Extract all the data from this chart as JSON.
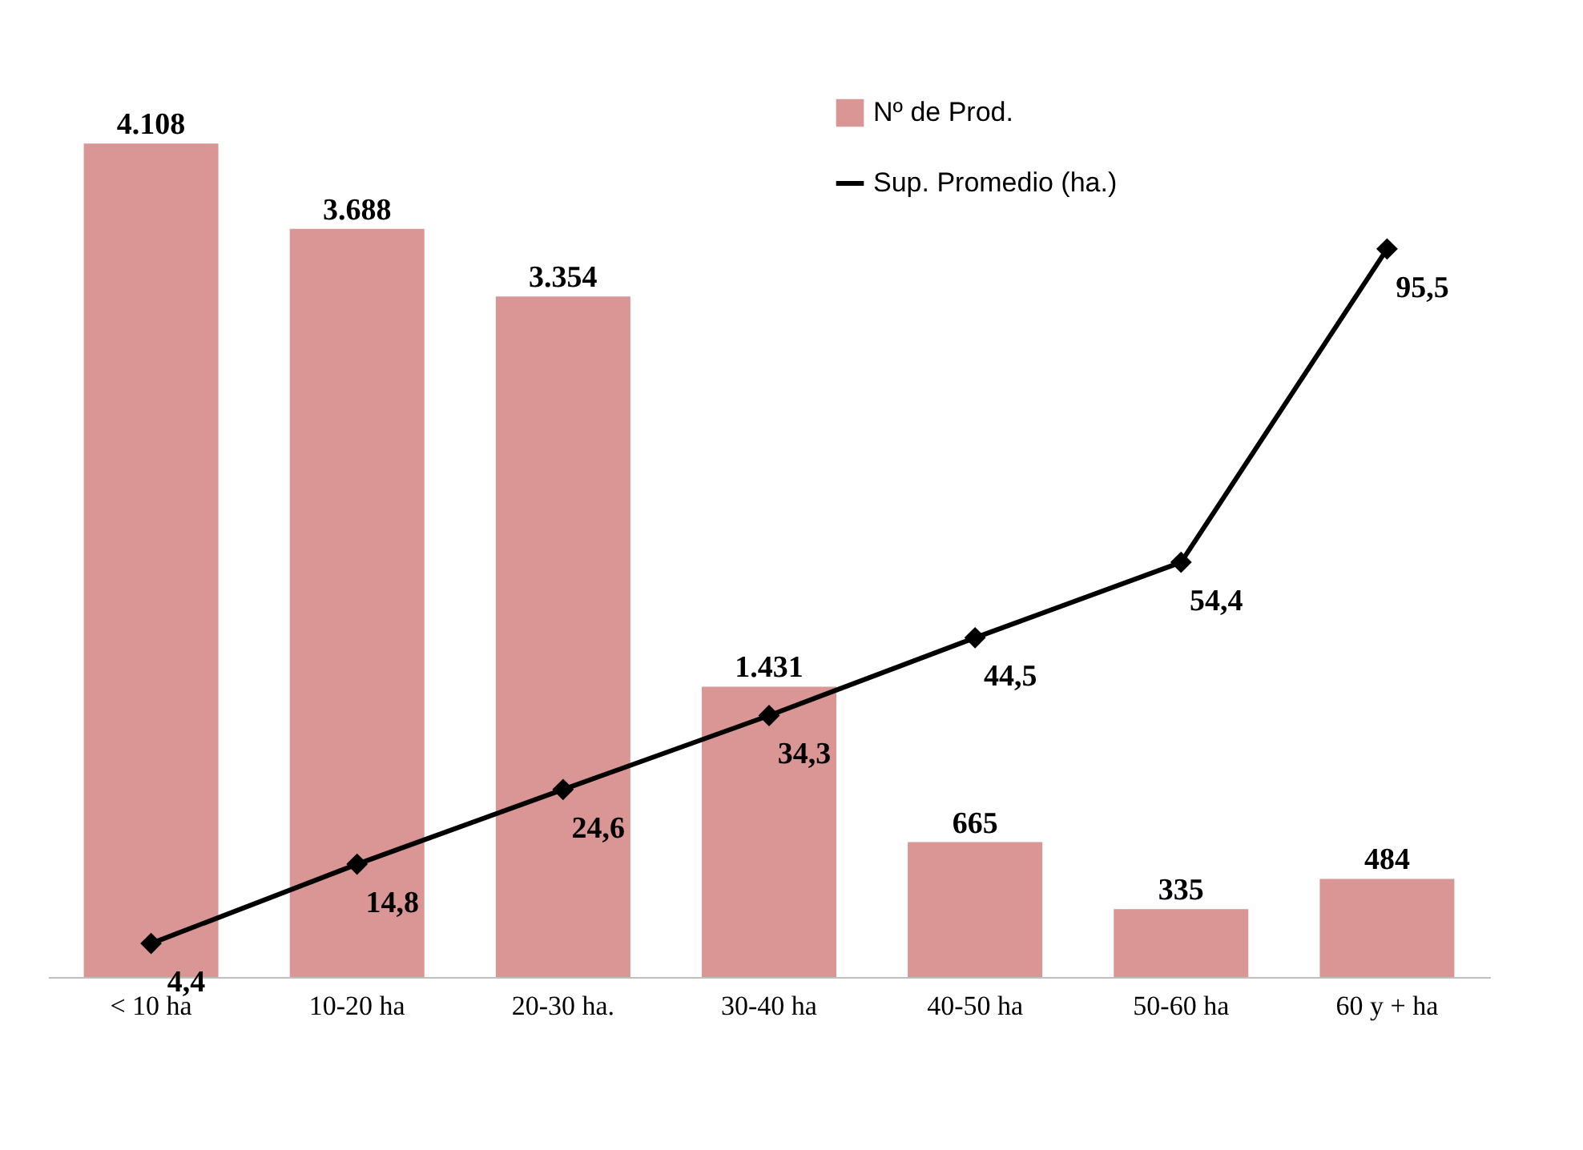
{
  "chart_data": {
    "type": "bar",
    "categories": [
      "< 10 ha",
      "10-20 ha",
      "20-30 ha.",
      "30-40 ha",
      "40-50 ha",
      "50-60 ha",
      "60 y + ha"
    ],
    "series": [
      {
        "name": "Nº de Prod.",
        "color": "#d99694",
        "values": [
          4108,
          3688,
          3354,
          1431,
          665,
          335,
          484
        ],
        "value_labels": [
          "4.108",
          "3.688",
          "3.354",
          "1.431",
          "665",
          "335",
          "484"
        ]
      },
      {
        "name": "Sup. Promedio (ha.)",
        "type": "line",
        "axis": "y2",
        "color": "#000000",
        "marker": "diamond",
        "values": [
          4.4,
          14.8,
          24.6,
          34.3,
          44.5,
          54.4,
          95.5
        ],
        "value_labels": [
          "4,4",
          "14,8",
          "24,6",
          "34,3",
          "44,5",
          "54,4",
          "95,5"
        ]
      }
    ],
    "legend": "top right",
    "tick_labels": "x"
  }
}
